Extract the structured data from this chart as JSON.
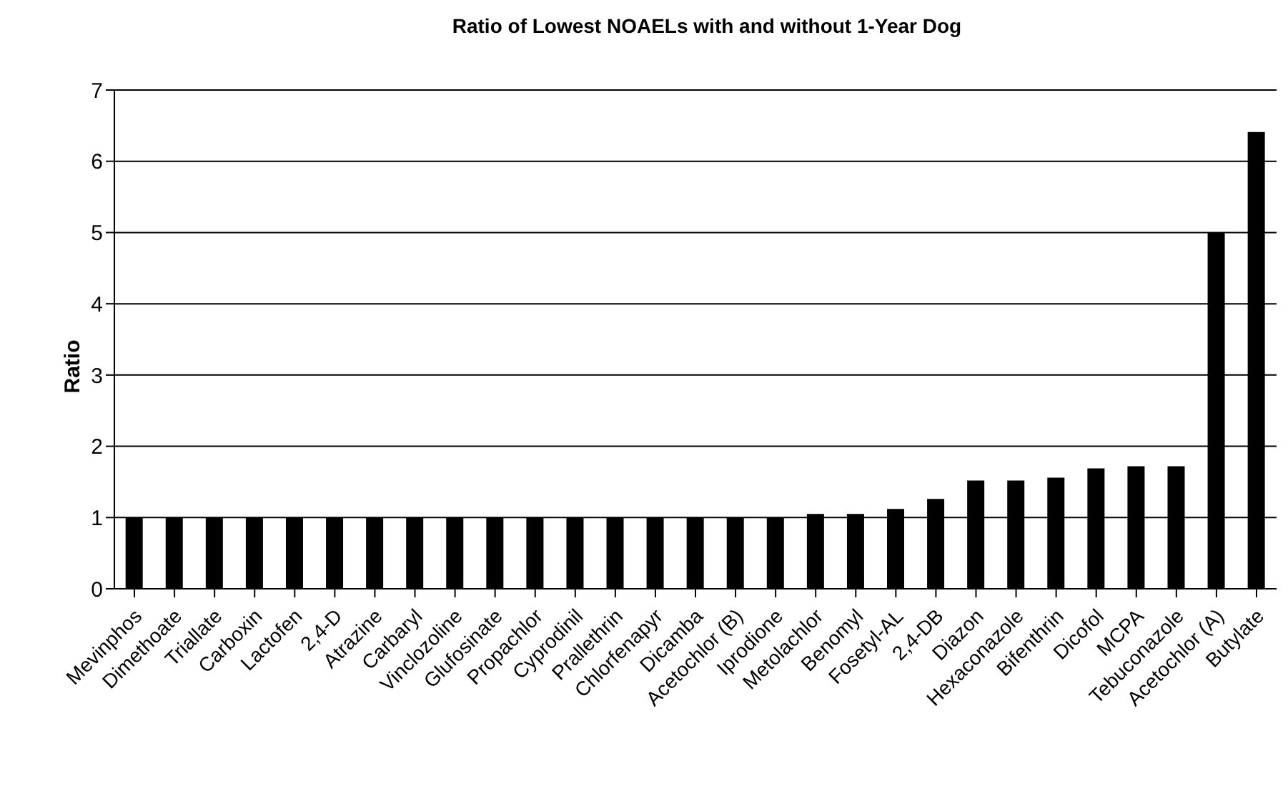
{
  "chart_data": {
    "type": "bar",
    "title": "Ratio of Lowest NOAELs with and without 1-Year Dog",
    "ylabel": "Ratio",
    "categories": [
      "Mevinphos",
      "Dimethoate",
      "Triallate",
      "Carboxin",
      "Lactofen",
      "2,4-D",
      "Atrazine",
      "Carbaryl",
      "Vinclozoline",
      "Glufosinate",
      "Propachlor",
      "Cyprodinil",
      "Prallethrin",
      "Chlorfenapyr",
      "Dicamba",
      "Acetochlor (B)",
      "Iprodione",
      "Metolachlor",
      "Benomyl",
      "Fosetyl-AL",
      "2,4-DB",
      "Diazon",
      "Hexaconazole",
      "Bifenthrin",
      "Dicofol",
      "MCPA",
      "Tebuconazole",
      "Acetochlor (A)",
      "Butylate"
    ],
    "values": [
      1,
      1,
      1,
      1,
      1,
      1,
      1,
      1,
      1,
      1,
      1,
      1,
      1,
      1,
      1,
      1,
      1,
      1.05,
      1.05,
      1.12,
      1.26,
      1.52,
      1.52,
      1.56,
      1.69,
      1.72,
      1.72,
      5.0,
      6.41
    ],
    "color": "#000000",
    "ylim": [
      0,
      7
    ],
    "yticks": [
      0,
      1,
      2,
      3,
      4,
      5,
      6,
      7
    ],
    "grid": "y",
    "legend": false
  }
}
